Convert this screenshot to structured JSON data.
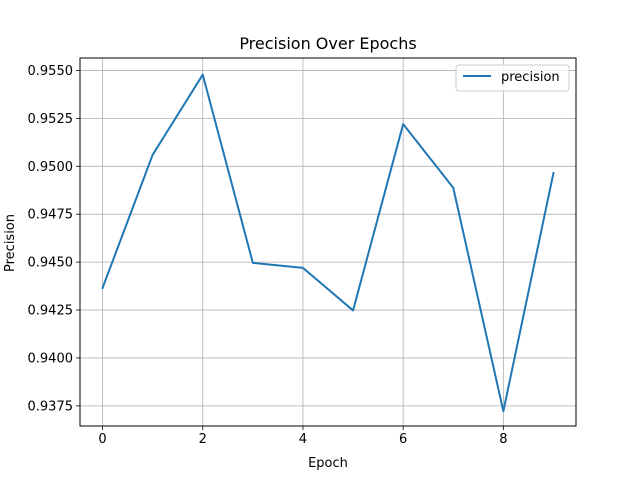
{
  "chart_data": {
    "type": "line",
    "title": "Precision Over Epochs",
    "xlabel": "Epoch",
    "ylabel": "Precision",
    "xlim": [
      -0.45,
      9.45
    ],
    "ylim": [
      0.93645,
      0.95565
    ],
    "xticks": [
      0,
      2,
      4,
      6,
      8
    ],
    "xtick_labels": [
      "0",
      "2",
      "4",
      "6",
      "8"
    ],
    "yticks": [
      0.9375,
      0.94,
      0.9425,
      0.945,
      0.9475,
      0.95,
      0.9525,
      0.955
    ],
    "ytick_labels": [
      "0.9375",
      "0.9400",
      "0.9425",
      "0.9450",
      "0.9475",
      "0.9500",
      "0.9525",
      "0.9550"
    ],
    "grid": true,
    "legend_position": "top-right",
    "series": [
      {
        "name": "precision",
        "color": "#1f77b4",
        "x": [
          0,
          1,
          2,
          3,
          4,
          5,
          6,
          7,
          8,
          9
        ],
        "values": [
          0.94365,
          0.9506,
          0.95478,
          0.94496,
          0.9447,
          0.94248,
          0.9522,
          0.94888,
          0.93722,
          0.94965
        ]
      }
    ]
  }
}
